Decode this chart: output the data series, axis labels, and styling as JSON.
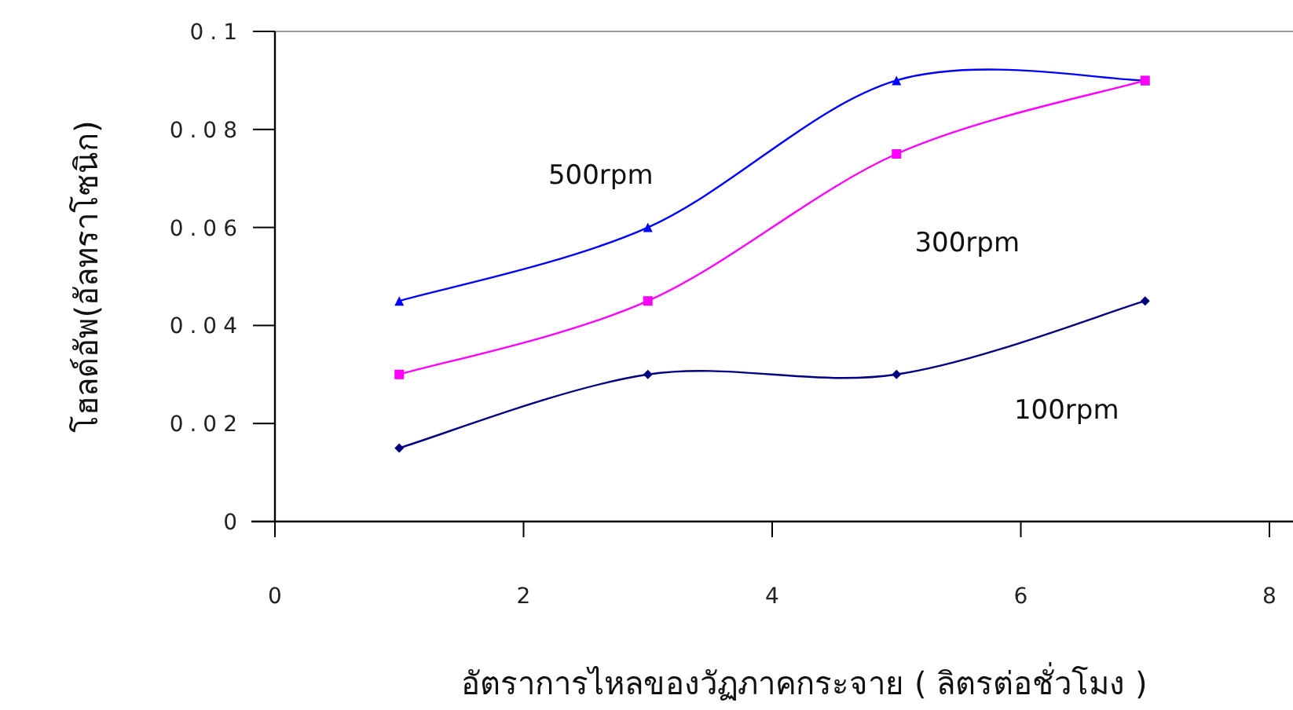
{
  "chart_data": {
    "type": "line",
    "xlabel": "อัตราการไหลของวัฏภาคกระจาย ( ลิตรต่อชั่วโมง )",
    "ylabel": "โฮลด์อัพ(อัลทราโซนิก)",
    "x": [
      1,
      3,
      5,
      7
    ],
    "series": [
      {
        "name": "500rpm",
        "color": "#0000ff",
        "values": [
          0.045,
          0.06,
          0.09,
          0.09
        ],
        "marker": "triangle"
      },
      {
        "name": "300rpm",
        "color": "#ff00ff",
        "values": [
          0.03,
          0.045,
          0.075,
          0.09
        ],
        "marker": "square"
      },
      {
        "name": "100rpm",
        "color": "#000080",
        "values": [
          0.015,
          0.03,
          0.03,
          0.045
        ],
        "marker": "diamond"
      }
    ],
    "xlim": [
      0,
      8
    ],
    "xticks": [
      0,
      2,
      4,
      6,
      8
    ],
    "ylim": [
      0,
      0.1
    ],
    "yticks": [
      0,
      0.02,
      0.04,
      0.06,
      0.08,
      0.1
    ],
    "grid": false,
    "line_style": "solid"
  }
}
